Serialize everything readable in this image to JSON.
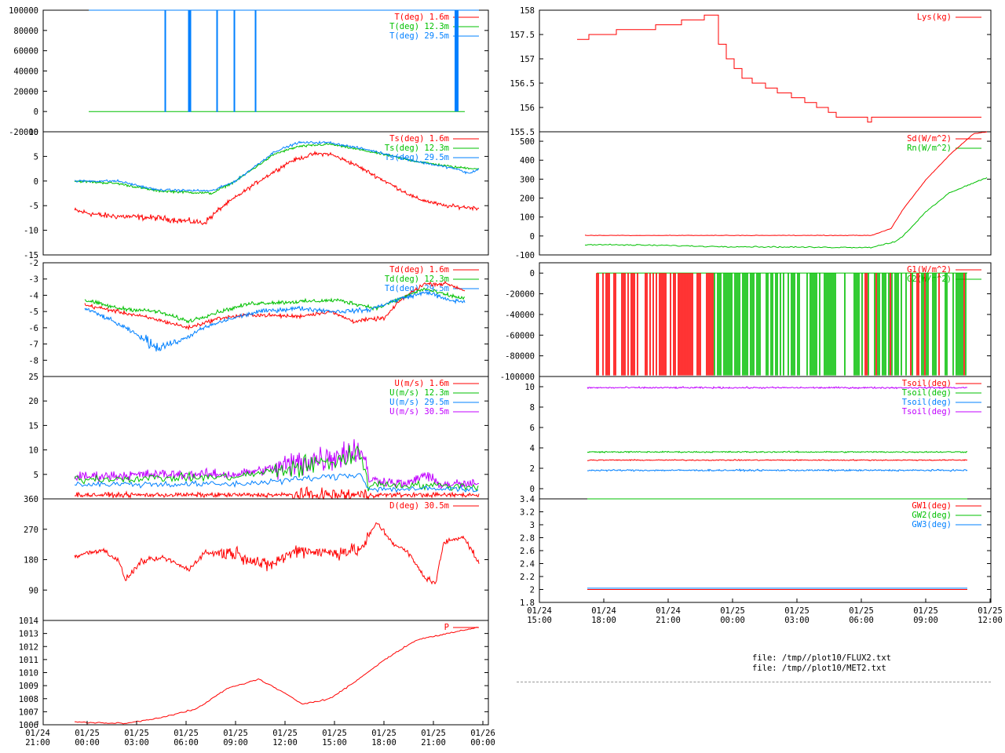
{
  "files": [
    "file: /tmp//plot10/FLUX2.txt",
    "file: /tmp//plot10/MET2.txt"
  ],
  "colors": {
    "red": "#ff0000",
    "green": "#00c000",
    "blue": "#0080ff",
    "purple": "#c000ff"
  },
  "chart_data": [
    {
      "id": "T",
      "type": "line",
      "ylim": [
        -20000,
        100000
      ],
      "yticks": [
        "100000",
        "80000",
        "60000",
        "40000",
        "20000",
        "0",
        "-20000"
      ],
      "series": [
        {
          "name": "T(deg)  1.6m",
          "color": "red"
        },
        {
          "name": "T(deg) 12.3m",
          "color": "green"
        },
        {
          "name": "T(deg) 29.5m",
          "color": "blue"
        }
      ]
    },
    {
      "id": "Ts",
      "type": "line",
      "ylim": [
        -15,
        10
      ],
      "yticks": [
        "10",
        "5",
        "0",
        "-5",
        "-10",
        "-15"
      ],
      "series": [
        {
          "name": "Ts(deg)  1.6m",
          "color": "red"
        },
        {
          "name": "Ts(deg) 12.3m",
          "color": "green"
        },
        {
          "name": "Ts(deg) 29.5m",
          "color": "blue"
        }
      ]
    },
    {
      "id": "Td",
      "type": "line",
      "ylim": [
        -9,
        -2
      ],
      "yticks": [
        "-2",
        "-3",
        "-4",
        "-5",
        "-6",
        "-7",
        "-8"
      ],
      "series": [
        {
          "name": "Td(deg)  1.6m",
          "color": "red"
        },
        {
          "name": "Td(deg) 12.3m",
          "color": "green"
        },
        {
          "name": "Td(deg) 29.5m",
          "color": "blue"
        }
      ]
    },
    {
      "id": "U",
      "type": "line",
      "ylim": [
        0,
        25
      ],
      "yticks": [
        "25",
        "20",
        "15",
        "10",
        "5"
      ],
      "series": [
        {
          "name": "U(m/s)  1.6m",
          "color": "red"
        },
        {
          "name": "U(m/s) 12.3m",
          "color": "green"
        },
        {
          "name": "U(m/s) 29.5m",
          "color": "blue"
        },
        {
          "name": "U(m/s) 30.5m",
          "color": "purple"
        }
      ]
    },
    {
      "id": "D",
      "type": "line",
      "ylim": [
        0,
        360
      ],
      "yticks": [
        "360",
        "270",
        "180",
        "90"
      ],
      "series": [
        {
          "name": "D(deg)  30.5m",
          "color": "red"
        }
      ]
    },
    {
      "id": "P",
      "type": "line",
      "ylim": [
        1006,
        1014
      ],
      "yticks": [
        "1014",
        "1013",
        "1012",
        "1011",
        "1010",
        "1009",
        "1008",
        "1007",
        "1006"
      ],
      "xticks": [
        [
          "01/24",
          "21:00"
        ],
        [
          "01/25",
          "00:00"
        ],
        [
          "01/25",
          "03:00"
        ],
        [
          "01/25",
          "06:00"
        ],
        [
          "01/25",
          "09:00"
        ],
        [
          "01/25",
          "12:00"
        ],
        [
          "01/25",
          "15:00"
        ],
        [
          "01/25",
          "18:00"
        ],
        [
          "01/25",
          "21:00"
        ],
        [
          "01/26",
          "00:00"
        ]
      ],
      "series": [
        {
          "name": "P",
          "color": "red"
        }
      ]
    },
    {
      "id": "Lys",
      "type": "line",
      "ylim": [
        155.5,
        158
      ],
      "yticks": [
        "158",
        "157.5",
        "157",
        "156.5",
        "156",
        "155.5"
      ],
      "series": [
        {
          "name": "Lys(kg)",
          "color": "red"
        }
      ]
    },
    {
      "id": "Sd",
      "type": "line",
      "ylim": [
        -100,
        550
      ],
      "yticks": [
        "500",
        "400",
        "300",
        "200",
        "100",
        "0",
        "-100"
      ],
      "series": [
        {
          "name": "Sd(W/m^2)",
          "color": "red"
        },
        {
          "name": "Rn(W/m^2)",
          "color": "green"
        }
      ]
    },
    {
      "id": "G",
      "type": "line",
      "ylim": [
        -100000,
        10000
      ],
      "yticks": [
        "0",
        "-20000",
        "-40000",
        "-60000",
        "-80000",
        "-100000"
      ],
      "series": [
        {
          "name": "G1(W/m^2)",
          "color": "red"
        },
        {
          "name": "G2(W/m^2)",
          "color": "green"
        }
      ]
    },
    {
      "id": "Tsoil",
      "type": "line",
      "ylim": [
        -1,
        11
      ],
      "yticks": [
        "10",
        "8",
        "6",
        "4",
        "2",
        "0"
      ],
      "series": [
        {
          "name": "Tsoil(deg)",
          "color": "red"
        },
        {
          "name": "Tsoil(deg)",
          "color": "green"
        },
        {
          "name": "Tsoil(deg)",
          "color": "blue"
        },
        {
          "name": "Tsoil(deg)",
          "color": "purple"
        }
      ]
    },
    {
      "id": "GW",
      "type": "line",
      "ylim": [
        1.8,
        3.4
      ],
      "yticks": [
        "3.4",
        "3.2",
        "3",
        "2.8",
        "2.6",
        "2.4",
        "2.2",
        "2",
        "1.8"
      ],
      "xticks": [
        [
          "01/24",
          "15:00"
        ],
        [
          "01/24",
          "18:00"
        ],
        [
          "01/24",
          "21:00"
        ],
        [
          "01/25",
          "00:00"
        ],
        [
          "01/25",
          "03:00"
        ],
        [
          "01/25",
          "06:00"
        ],
        [
          "01/25",
          "09:00"
        ],
        [
          "01/25",
          "12:00"
        ]
      ],
      "series": [
        {
          "name": "GW1(deg)",
          "color": "red"
        },
        {
          "name": "GW2(deg)",
          "color": "green"
        },
        {
          "name": "GW3(deg)",
          "color": "blue"
        }
      ]
    }
  ]
}
